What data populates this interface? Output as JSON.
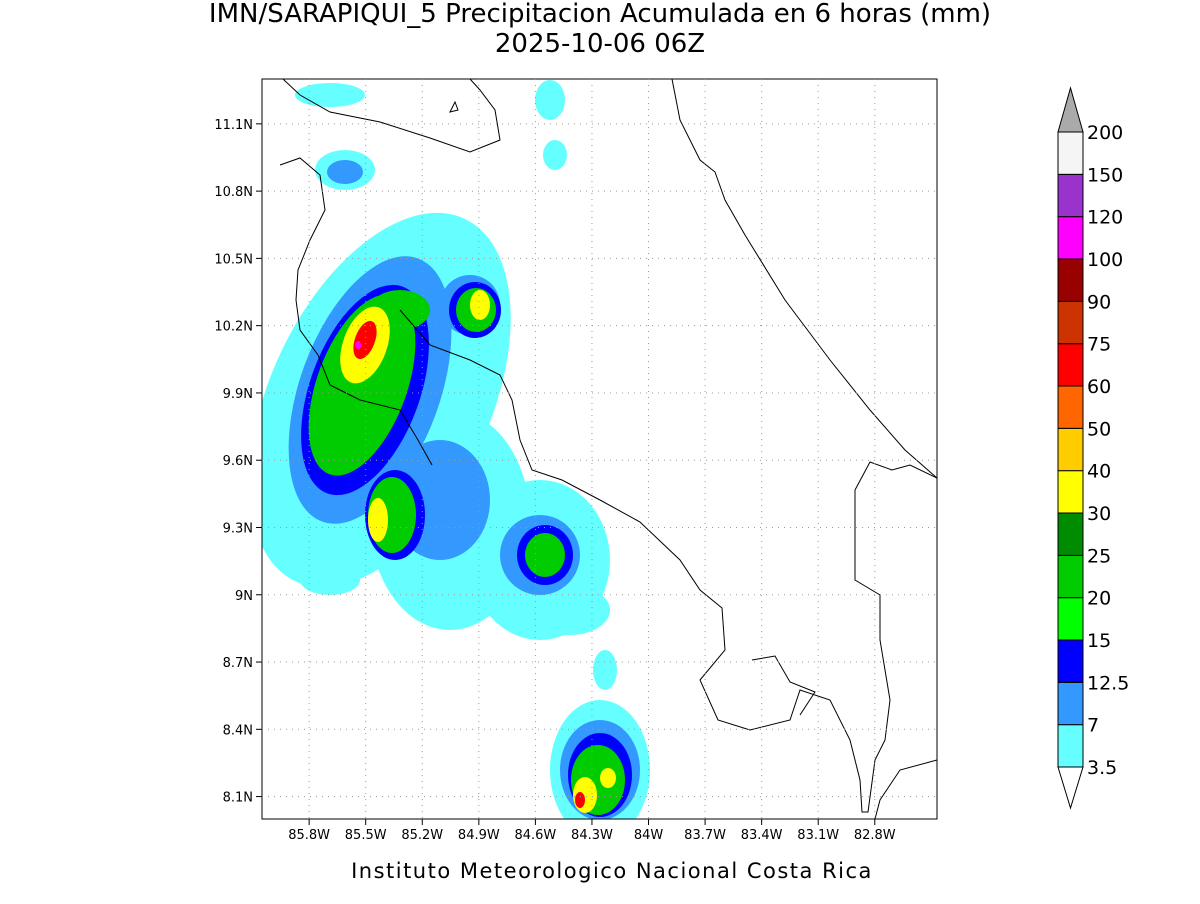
{
  "map": {
    "title": "IMN/SARAPIQUI_5 Precipitacion Acumulada en 6 horas (mm)",
    "subtitle": "2025-10-06 06Z",
    "footer": "Instituto Meteorologico Nacional Costa Rica",
    "xlim": [
      -86.05,
      -82.47
    ],
    "ylim": [
      8.0,
      11.3
    ],
    "xticks": [
      {
        "value": -85.8,
        "label": "85.8W"
      },
      {
        "value": -85.5,
        "label": "85.5W"
      },
      {
        "value": -85.2,
        "label": "85.2W"
      },
      {
        "value": -84.9,
        "label": "84.9W"
      },
      {
        "value": -84.6,
        "label": "84.6W"
      },
      {
        "value": -84.3,
        "label": "84.3W"
      },
      {
        "value": -84.0,
        "label": "84W"
      },
      {
        "value": -83.7,
        "label": "83.7W"
      },
      {
        "value": -83.4,
        "label": "83.4W"
      },
      {
        "value": -83.1,
        "label": "83.1W"
      },
      {
        "value": -82.8,
        "label": "82.8W"
      }
    ],
    "yticks": [
      {
        "value": 8.1,
        "label": "8.1N"
      },
      {
        "value": 8.4,
        "label": "8.4N"
      },
      {
        "value": 8.7,
        "label": "8.7N"
      },
      {
        "value": 9.0,
        "label": "9N"
      },
      {
        "value": 9.3,
        "label": "9.3N"
      },
      {
        "value": 9.6,
        "label": "9.6N"
      },
      {
        "value": 9.9,
        "label": "9.9N"
      },
      {
        "value": 10.2,
        "label": "10.2N"
      },
      {
        "value": 10.5,
        "label": "10.5N"
      },
      {
        "value": 10.8,
        "label": "10.8N"
      },
      {
        "value": 11.1,
        "label": "11.1N"
      }
    ],
    "grid": true,
    "colorbar": {
      "levels": [
        3.5,
        7,
        12.5,
        15,
        20,
        25,
        30,
        40,
        50,
        60,
        75,
        90,
        100,
        120,
        150,
        200
      ],
      "colors": [
        "#66ffff",
        "#3399ff",
        "#0000ff",
        "#00ff00",
        "#00cc00",
        "#008c00",
        "#ffff00",
        "#ffcc00",
        "#ff6600",
        "#ff0000",
        "#cc3300",
        "#990000",
        "#ff00ff",
        "#9933cc",
        "#f5f5f5"
      ],
      "over_color": "#aaaaaa",
      "under_color": "#ffffff"
    }
  }
}
